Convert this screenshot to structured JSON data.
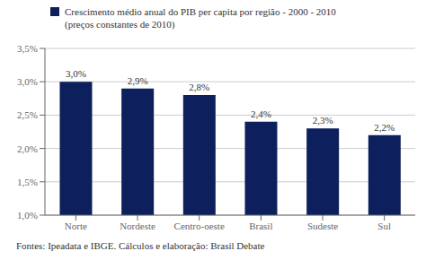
{
  "chart_data": {
    "type": "bar",
    "categories": [
      "Norte",
      "Nordeste",
      "Centro-oeste",
      "Brasil",
      "Sudeste",
      "Sul"
    ],
    "series": [
      {
        "name": "Crescimento médio anual do PIB per capita por região - 2000 - 2010\n(preços constantes de 2010)",
        "color": "#0d1f5c",
        "values": [
          3.0,
          2.9,
          2.8,
          2.4,
          2.3,
          2.2
        ],
        "value_labels": [
          "3,0%",
          "2,9%",
          "2,8%",
          "2,4%",
          "2,3%",
          "2,2%"
        ]
      }
    ],
    "ylim": [
      1.0,
      3.5
    ],
    "yticks": [
      {
        "value": 1.0,
        "label": "1,0%"
      },
      {
        "value": 1.5,
        "label": "1,5%"
      },
      {
        "value": 2.0,
        "label": "2,0%"
      },
      {
        "value": 2.5,
        "label": "2,5%"
      },
      {
        "value": 3.0,
        "label": "3,0%"
      },
      {
        "value": 3.5,
        "label": "3,5%"
      }
    ],
    "grid": true,
    "legend": "top left",
    "data_labels": true,
    "annotations": [
      "Fontes: Ipeadata e IBGE. Cálculos e elaboração: Brasil Debate"
    ]
  }
}
